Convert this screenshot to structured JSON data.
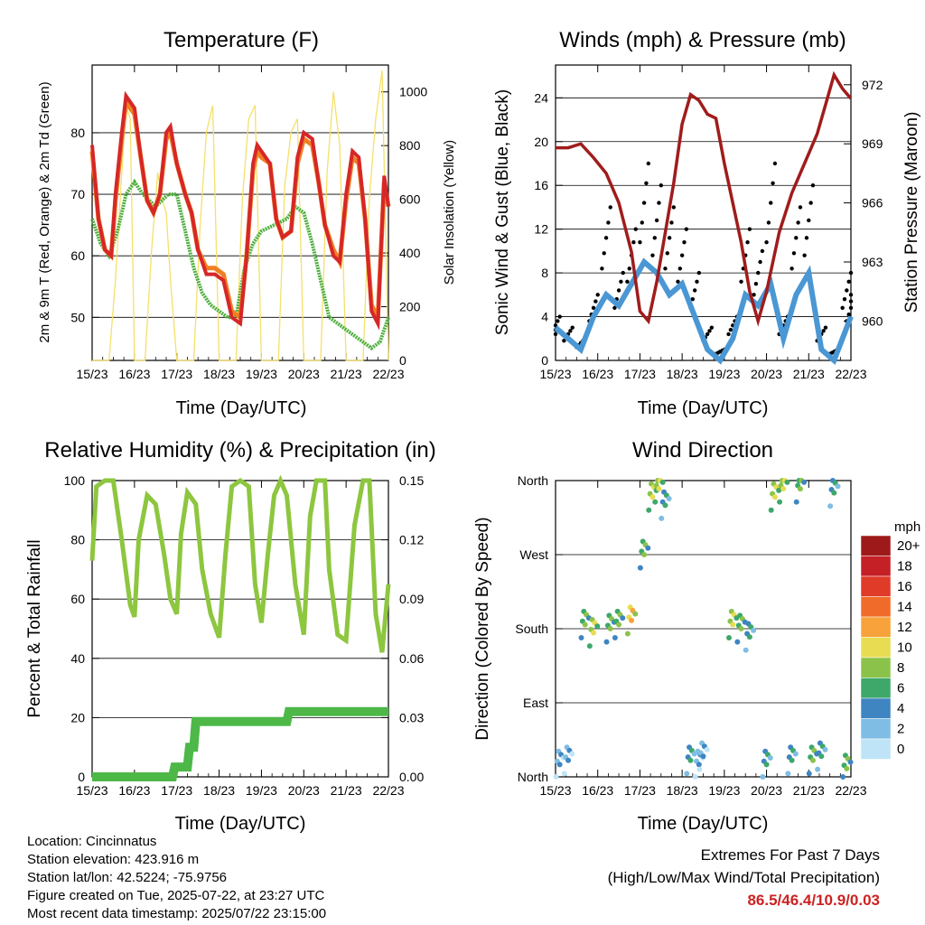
{
  "panels": {
    "temperature": {
      "title": "Temperature (F)",
      "xlabel": "Time (Day/UTC)",
      "ylabel_left": "2m & 9m T (Red, Orange) & 2m Td (Green)",
      "ylabel_right": "Solar Insolation (Yellow)"
    },
    "winds": {
      "title": "Winds (mph) & Pressure (mb)",
      "xlabel": "Time (Day/UTC)",
      "ylabel_left": "Sonic Wind & Gust (Blue, Black)",
      "ylabel_right": "Station Pressure (Maroon)"
    },
    "humidity": {
      "title": "Relative Humidity (%) & Precipitation (in)",
      "xlabel": "Time (Day/UTC)",
      "ylabel_left": "Percent & Total Rainfall"
    },
    "direction": {
      "title": "Wind Direction",
      "xlabel": "Time (Day/UTC)",
      "ylabel_left": "Direction (Colored By Speed)",
      "colorbar_title": "mph"
    }
  },
  "info": {
    "location": "Location: Cincinnatus",
    "elevation": "Station elevation: 423.916 m",
    "latlon": "Station lat/lon: 42.5224; -75.9756",
    "created": "Figure created on Tue, 2025-07-22, at 23:27 UTC",
    "recent": "Most recent data timestamp: 2025/07/22 23:15:00"
  },
  "extremes": {
    "title": "Extremes For Past 7 Days",
    "subtitle": "(High/Low/Max Wind/Total Precipitation)",
    "values": "86.5/46.4/10.9/0.03"
  },
  "colors": {
    "temp2m": "#d62728",
    "temp9m": "#f07f22",
    "dewpoint": "#4caf3c",
    "solar": "#f5e06a",
    "wind": "#4a97d4",
    "gust": "#000000",
    "pressure": "#a01c1c",
    "rh": "#8dc63f",
    "precip": "#4db848",
    "extremes": "#cc2222"
  },
  "chart_data": [
    {
      "type": "line",
      "title": "Temperature (F)",
      "xlabel": "Time (Day/UTC)",
      "ylabel": "2m & 9m T (Red, Orange) & 2m Td (Green)",
      "y2label": "Solar Insolation (Yellow)",
      "x_ticks": [
        "15/23",
        "16/23",
        "17/23",
        "18/23",
        "19/23",
        "20/23",
        "21/23",
        "22/23"
      ],
      "ylim": [
        43,
        91
      ],
      "y_ticks": [
        50,
        60,
        70,
        80
      ],
      "y2lim": [
        0,
        1100
      ],
      "y2_ticks": [
        0,
        200,
        400,
        600,
        800,
        1000
      ],
      "grid": true,
      "series": [
        {
          "name": "2m T",
          "axis": "left",
          "x": [
            0,
            0.15,
            0.3,
            0.45,
            0.55,
            0.7,
            0.8,
            1.0,
            1.15,
            1.3,
            1.45,
            1.6,
            1.75,
            1.85,
            2.0,
            2.2,
            2.35,
            2.5,
            2.7,
            2.9,
            3.1,
            3.3,
            3.5,
            3.65,
            3.8,
            3.9,
            4.0,
            4.2,
            4.35,
            4.5,
            4.7,
            4.85,
            5.0,
            5.2,
            5.35,
            5.5,
            5.7,
            5.85,
            6.0,
            6.15,
            6.3,
            6.45,
            6.6,
            6.75,
            6.9,
            7.0
          ],
          "y": [
            78,
            66,
            61,
            60,
            70,
            80,
            86,
            84,
            76,
            69,
            67,
            70,
            80,
            81,
            75,
            70,
            67,
            61,
            57,
            57,
            56,
            50,
            49,
            60,
            75,
            78,
            77,
            75,
            66,
            63,
            64,
            76,
            80,
            79,
            72,
            65,
            60,
            59,
            70,
            77,
            76,
            66,
            51,
            49,
            73,
            68
          ]
        },
        {
          "name": "9m T",
          "axis": "left",
          "x": [
            0,
            0.15,
            0.3,
            0.45,
            0.55,
            0.7,
            0.8,
            1.0,
            1.15,
            1.3,
            1.45,
            1.6,
            1.75,
            1.85,
            2.0,
            2.2,
            2.35,
            2.5,
            2.7,
            2.9,
            3.1,
            3.3,
            3.5,
            3.65,
            3.8,
            3.9,
            4.0,
            4.2,
            4.35,
            4.5,
            4.7,
            4.85,
            5.0,
            5.2,
            5.35,
            5.5,
            5.7,
            5.85,
            6.0,
            6.15,
            6.3,
            6.45,
            6.6,
            6.75,
            6.9,
            7.0
          ],
          "y": [
            77,
            66,
            61,
            60,
            69,
            79,
            85,
            83,
            76,
            69,
            67,
            70,
            79,
            80,
            75,
            70,
            67,
            61,
            58,
            58,
            57,
            51,
            50,
            60,
            74,
            77,
            76,
            75,
            66,
            63,
            64,
            75,
            79,
            78,
            72,
            65,
            61,
            59,
            69,
            76,
            75,
            66,
            52,
            50,
            72,
            68
          ]
        },
        {
          "name": "2m Td",
          "axis": "left",
          "x": [
            0,
            0.2,
            0.4,
            0.6,
            0.8,
            1.0,
            1.2,
            1.5,
            1.8,
            2.0,
            2.2,
            2.4,
            2.6,
            2.8,
            3.0,
            3.2,
            3.4,
            3.6,
            3.8,
            4.0,
            4.3,
            4.6,
            4.8,
            5.0,
            5.2,
            5.4,
            5.6,
            5.8,
            6.0,
            6.2,
            6.4,
            6.6,
            6.8,
            7.0
          ],
          "y": [
            66,
            62,
            60,
            64,
            70,
            72,
            70,
            68,
            70,
            70,
            64,
            58,
            54,
            52,
            51,
            50,
            50,
            58,
            62,
            64,
            65,
            66,
            68,
            67,
            62,
            56,
            50,
            49,
            48,
            47,
            46,
            45,
            46,
            50
          ]
        },
        {
          "name": "Solar Insolation",
          "axis": "right",
          "x": [
            0,
            0.4,
            0.55,
            0.7,
            0.8,
            0.9,
            1.0,
            1.25,
            1.4,
            1.55,
            1.65,
            1.75,
            1.85,
            2.0,
            2.2,
            2.4,
            2.55,
            2.7,
            2.85,
            3.0,
            3.2,
            3.4,
            3.55,
            3.7,
            3.85,
            4.0,
            4.2,
            4.4,
            4.55,
            4.7,
            4.85,
            5.0,
            5.2,
            5.4,
            5.55,
            5.7,
            5.85,
            6.0,
            6.2,
            6.4,
            6.55,
            6.7,
            6.85,
            7.0
          ],
          "y": [
            0,
            0,
            300,
            700,
            950,
            900,
            0,
            0,
            400,
            700,
            600,
            550,
            300,
            0,
            0,
            0,
            500,
            850,
            950,
            0,
            0,
            0,
            600,
            900,
            950,
            0,
            0,
            0,
            650,
            850,
            900,
            0,
            0,
            0,
            700,
            1000,
            800,
            0,
            0,
            0,
            600,
            900,
            1080,
            0
          ]
        }
      ]
    },
    {
      "type": "line",
      "title": "Winds (mph) & Pressure (mb)",
      "xlabel": "Time (Day/UTC)",
      "ylabel": "Sonic Wind & Gust (Blue, Black)",
      "y2label": "Station Pressure (Maroon)",
      "x_ticks": [
        "15/23",
        "16/23",
        "17/23",
        "18/23",
        "19/23",
        "20/23",
        "21/23",
        "22/23"
      ],
      "ylim": [
        0,
        27
      ],
      "y_ticks": [
        0,
        4,
        8,
        12,
        16,
        20,
        24
      ],
      "y2lim": [
        958,
        973
      ],
      "y2_ticks": [
        960,
        963,
        966,
        969,
        972
      ],
      "grid": true,
      "series": [
        {
          "name": "Sonic Wind",
          "axis": "left",
          "x": [
            0,
            0.3,
            0.6,
            0.9,
            1.2,
            1.5,
            1.8,
            2.1,
            2.4,
            2.7,
            3.0,
            3.3,
            3.6,
            3.9,
            4.2,
            4.5,
            4.8,
            5.1,
            5.4,
            5.7,
            6.0,
            6.3,
            6.6,
            6.9,
            7.0
          ],
          "y": [
            3,
            2,
            1,
            4,
            6,
            5,
            7,
            9,
            8,
            6,
            7,
            4,
            1,
            0,
            2,
            6,
            5,
            7,
            2,
            6,
            8,
            1,
            0,
            3,
            4
          ]
        },
        {
          "name": "Gust",
          "axis": "left",
          "x": [
            0,
            0.3,
            0.6,
            0.9,
            1.2,
            1.5,
            1.8,
            2.1,
            2.4,
            2.7,
            3.0,
            3.3,
            3.6,
            3.9,
            4.2,
            4.5,
            4.8,
            5.1,
            5.4,
            5.7,
            6.0,
            6.3,
            6.6,
            6.9,
            7.0
          ],
          "y": [
            4,
            3,
            2,
            6,
            14,
            8,
            12,
            18,
            16,
            14,
            12,
            8,
            3,
            1,
            4,
            12,
            10,
            18,
            4,
            14,
            16,
            3,
            1,
            8,
            6
          ]
        },
        {
          "name": "Station Pressure",
          "axis": "right",
          "x": [
            0,
            0.3,
            0.6,
            0.9,
            1.2,
            1.5,
            1.8,
            2.0,
            2.2,
            2.4,
            2.6,
            2.8,
            3.0,
            3.2,
            3.4,
            3.6,
            3.8,
            4.0,
            4.2,
            4.4,
            4.6,
            4.8,
            5.0,
            5.3,
            5.6,
            5.9,
            6.2,
            6.4,
            6.6,
            6.8,
            7.0
          ],
          "y": [
            968.8,
            968.8,
            969.0,
            968.3,
            967.5,
            966.0,
            963.5,
            960.5,
            960.0,
            962.0,
            964.5,
            967.0,
            970.0,
            971.5,
            971.2,
            970.5,
            970.3,
            968.0,
            966.0,
            964.0,
            961.5,
            960.0,
            961.5,
            964.5,
            966.5,
            968.0,
            969.5,
            971.0,
            972.5,
            971.8,
            971.3
          ]
        }
      ]
    },
    {
      "type": "line",
      "title": "Relative Humidity (%) & Precipitation (in)",
      "xlabel": "Time (Day/UTC)",
      "ylabel": "Percent & Total Rainfall",
      "x_ticks": [
        "15/23",
        "16/23",
        "17/23",
        "18/23",
        "19/23",
        "20/23",
        "21/23",
        "22/23"
      ],
      "ylim": [
        0,
        100
      ],
      "y_ticks": [
        0,
        20,
        40,
        60,
        80,
        100
      ],
      "y2lim": [
        0,
        0.15
      ],
      "y2_ticks": [
        "0.00",
        "0.03",
        "0.06",
        "0.09",
        "0.12",
        "0.15"
      ],
      "grid": true,
      "series": [
        {
          "name": "RH",
          "axis": "left",
          "x": [
            0,
            0.1,
            0.3,
            0.5,
            0.7,
            0.9,
            1.0,
            1.1,
            1.3,
            1.5,
            1.7,
            1.85,
            2.0,
            2.1,
            2.25,
            2.45,
            2.6,
            2.8,
            3.0,
            3.15,
            3.3,
            3.5,
            3.7,
            3.85,
            4.0,
            4.15,
            4.3,
            4.45,
            4.6,
            4.8,
            5.0,
            5.15,
            5.3,
            5.5,
            5.6,
            5.8,
            6.0,
            6.2,
            6.4,
            6.55,
            6.7,
            6.85,
            7.0
          ],
          "y": [
            73,
            98,
            100,
            100,
            80,
            58,
            54,
            80,
            95,
            92,
            75,
            60,
            55,
            82,
            96,
            92,
            70,
            55,
            47,
            75,
            98,
            100,
            98,
            65,
            52,
            75,
            95,
            100,
            95,
            65,
            48,
            88,
            100,
            100,
            70,
            48,
            46,
            85,
            100,
            100,
            55,
            42,
            65
          ]
        },
        {
          "name": "Total Precipitation",
          "axis": "right",
          "x": [
            0,
            1.9,
            1.95,
            2.25,
            2.3,
            2.4,
            2.45,
            4.6,
            4.65,
            7.0
          ],
          "y": [
            0,
            0,
            0.005,
            0.005,
            0.015,
            0.015,
            0.028,
            0.028,
            0.033,
            0.033
          ]
        }
      ]
    },
    {
      "type": "scatter",
      "title": "Wind Direction",
      "xlabel": "Time (Day/UTC)",
      "ylabel": "Direction (Colored By Speed)",
      "x_ticks": [
        "15/23",
        "16/23",
        "17/23",
        "18/23",
        "19/23",
        "20/23",
        "21/23",
        "22/23"
      ],
      "y_ticks": [
        "North",
        "East",
        "South",
        "West",
        "North"
      ],
      "ylim": [
        0,
        360
      ],
      "colorbar": {
        "title": "mph",
        "labels": [
          "20+",
          "18",
          "16",
          "14",
          "12",
          "10",
          "8",
          "6",
          "4",
          "2",
          "0"
        ],
        "colors": [
          "#9e1a1a",
          "#c42026",
          "#e03a28",
          "#f06a2a",
          "#f7a23a",
          "#e8dc52",
          "#8bc34a",
          "#3da86a",
          "#3f85c2",
          "#7fbde4",
          "#bfe4f7"
        ]
      },
      "series": [
        {
          "name": "clusters",
          "x": [
            0.1,
            0.3,
            0.7,
            0.9,
            1.3,
            1.5,
            1.8,
            2.1,
            2.3,
            2.45,
            2.6,
            3.2,
            3.4,
            3.5,
            4.2,
            4.4,
            4.6,
            5.0,
            5.2,
            5.4,
            5.6,
            5.8,
            6.1,
            6.3,
            6.6,
            6.9
          ],
          "y": [
            15,
            20,
            185,
            175,
            180,
            185,
            190,
            270,
            340,
            350,
            330,
            20,
            15,
            25,
            185,
            180,
            170,
            15,
            340,
            350,
            20,
            350,
            20,
            25,
            345,
            10
          ],
          "speed": [
            2,
            1,
            6,
            7,
            5,
            6,
            9,
            6,
            8,
            7,
            4,
            3,
            2,
            2,
            8,
            6,
            3,
            4,
            7,
            8,
            4,
            6,
            5,
            4,
            3,
            5
          ]
        }
      ]
    }
  ]
}
